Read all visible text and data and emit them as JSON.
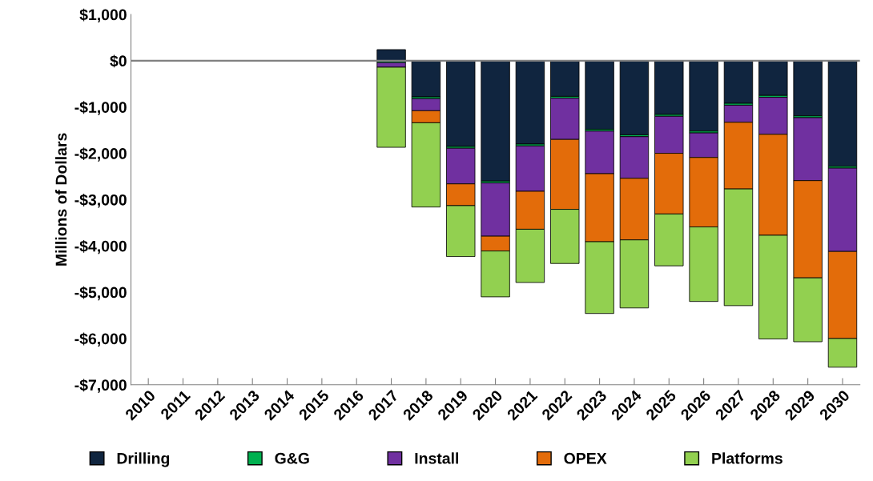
{
  "chart_data": {
    "type": "bar",
    "stacked": true,
    "ylabel": "Millions of Dollars",
    "categories": [
      "2010",
      "2011",
      "2012",
      "2013",
      "2014",
      "2015",
      "2016",
      "2017",
      "2018",
      "2019",
      "2020",
      "2021",
      "2022",
      "2023",
      "2024",
      "2025",
      "2026",
      "2027",
      "2028",
      "2029",
      "2030"
    ],
    "series": [
      {
        "name": "Drilling",
        "color": "#10253f",
        "values": [
          null,
          null,
          null,
          null,
          null,
          null,
          null,
          240,
          -780,
          -1850,
          -2600,
          -1800,
          -770,
          -1480,
          -1600,
          -1160,
          -1520,
          -920,
          -750,
          -1190,
          -2280
        ]
      },
      {
        "name": "G&G",
        "color": "#00b050",
        "values": [
          null,
          null,
          null,
          null,
          null,
          null,
          null,
          -40,
          -40,
          -40,
          -40,
          -40,
          -40,
          -40,
          -40,
          -40,
          -40,
          -40,
          -40,
          -40,
          -40
        ]
      },
      {
        "name": "Install",
        "color": "#7030a0",
        "values": [
          null,
          null,
          null,
          null,
          null,
          null,
          null,
          -100,
          -260,
          -770,
          -1150,
          -980,
          -890,
          -920,
          -900,
          -800,
          -530,
          -370,
          -800,
          -1360,
          -1800
        ]
      },
      {
        "name": "OPEX",
        "color": "#e36c0a",
        "values": [
          null,
          null,
          null,
          null,
          null,
          null,
          null,
          null,
          -260,
          -470,
          -320,
          -820,
          -1510,
          -1470,
          -1330,
          -1310,
          -1500,
          -1440,
          -2180,
          -2100,
          -1880
        ]
      },
      {
        "name": "Platforms",
        "color": "#92d050",
        "values": [
          null,
          null,
          null,
          null,
          null,
          null,
          null,
          -1730,
          -1820,
          -1100,
          -990,
          -1150,
          -1170,
          -1550,
          -1470,
          -1120,
          -1610,
          -2520,
          -2240,
          -1380,
          -620
        ]
      }
    ],
    "ylim": [
      -7000,
      1000
    ],
    "yticks": [
      {
        "value": -7000,
        "label": "-$7,000"
      },
      {
        "value": -6000,
        "label": "-$6,000"
      },
      {
        "value": -5000,
        "label": "-$5,000"
      },
      {
        "value": -4000,
        "label": "-$4,000"
      },
      {
        "value": -3000,
        "label": "-$3,000"
      },
      {
        "value": -2000,
        "label": "-$2,000"
      },
      {
        "value": -1000,
        "label": "-$1,000"
      },
      {
        "value": 0,
        "label": "$0"
      },
      {
        "value": 1000,
        "label": "$1,000"
      }
    ],
    "ref_lines": [
      {
        "axis": "y",
        "value": 0,
        "color": "#808080"
      }
    ],
    "grid": false,
    "legend": "bottom"
  }
}
